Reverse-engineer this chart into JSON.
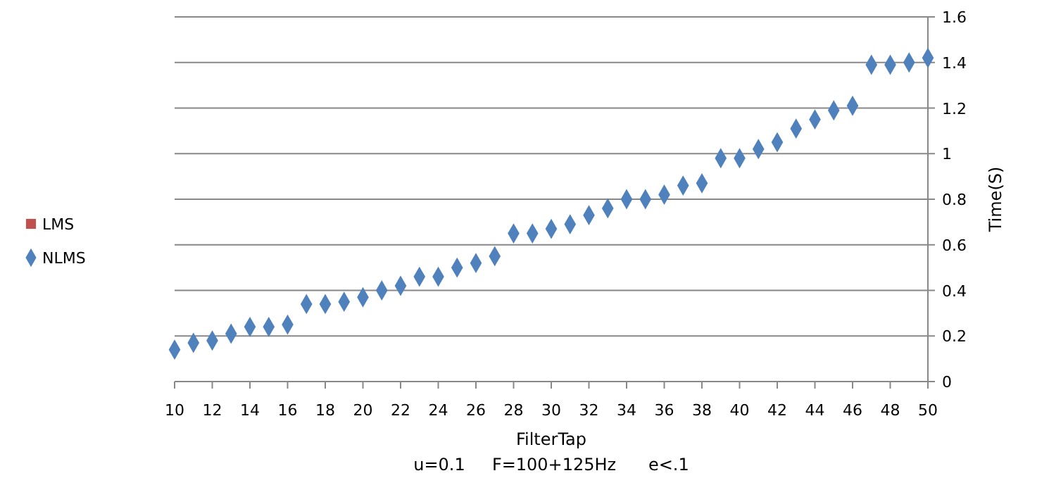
{
  "chart_data": {
    "type": "scatter",
    "xlabel": "FilterTap",
    "ylabel": "Time(S)",
    "annotations": [
      "u=0.1     F=100+125Hz      e<.1"
    ],
    "x": [
      10,
      11,
      12,
      13,
      14,
      15,
      16,
      17,
      18,
      19,
      20,
      21,
      22,
      23,
      24,
      25,
      26,
      27,
      28,
      29,
      30,
      31,
      32,
      33,
      34,
      35,
      36,
      37,
      38,
      39,
      40,
      41,
      42,
      43,
      44,
      45,
      46,
      47,
      48,
      49,
      50
    ],
    "series": [
      {
        "name": "LMS",
        "color": "#c0504d",
        "marker": "square",
        "values": [
          null,
          null,
          null,
          null,
          null,
          null,
          null,
          null,
          null,
          null,
          null,
          null,
          null,
          null,
          null,
          null,
          null,
          null,
          null,
          null,
          null,
          null,
          null,
          null,
          null,
          null,
          null,
          null,
          null,
          null,
          null,
          null,
          null,
          null,
          null,
          null,
          null,
          null,
          null,
          null,
          null
        ]
      },
      {
        "name": "NLMS",
        "color": "#4f81bd",
        "marker": "diamond",
        "values": [
          0.14,
          0.17,
          0.18,
          0.21,
          0.24,
          0.24,
          0.25,
          0.34,
          0.34,
          0.35,
          0.37,
          0.4,
          0.42,
          0.46,
          0.46,
          0.5,
          0.52,
          0.55,
          0.65,
          0.65,
          0.67,
          0.69,
          0.73,
          0.76,
          0.8,
          0.8,
          0.82,
          0.86,
          0.87,
          0.98,
          0.98,
          1.02,
          1.05,
          1.11,
          1.15,
          1.19,
          1.21,
          1.39,
          1.39,
          1.4,
          1.42
        ]
      }
    ],
    "xlim": [
      10,
      50
    ],
    "xticks": [
      10,
      12,
      14,
      16,
      18,
      20,
      22,
      24,
      26,
      28,
      30,
      32,
      34,
      36,
      38,
      40,
      42,
      44,
      46,
      48,
      50
    ],
    "ylim": [
      0,
      1.6
    ],
    "yticks": [
      0,
      0.2,
      0.4,
      0.6,
      0.8,
      1,
      1.2,
      1.4,
      1.6
    ],
    "grid": "y",
    "legend": "left"
  }
}
